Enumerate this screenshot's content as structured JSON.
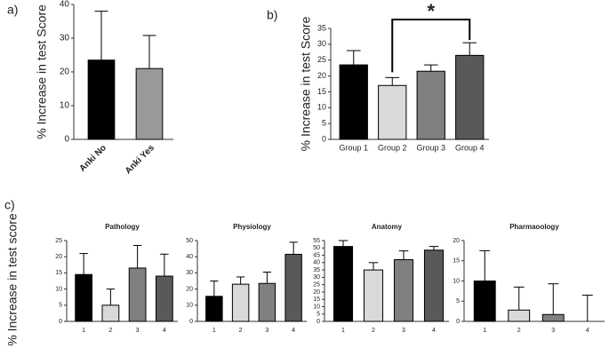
{
  "panel_labels": [
    "a)",
    "b)",
    "c)"
  ],
  "shared_ylabel": "% Increase in test score",
  "chart_data": [
    {
      "type": "bar",
      "ylabel": "% Increase in test Score",
      "categories": [
        "Anki No",
        "Anki Yes"
      ],
      "values": [
        23.5,
        21
      ],
      "errors": [
        14.5,
        9.8
      ],
      "colors": [
        "#000000",
        "#999999"
      ],
      "ylim": [
        0,
        40
      ],
      "yticks": [
        0,
        10,
        20,
        30,
        40
      ]
    },
    {
      "type": "bar",
      "ylabel": "% Increase in test Score",
      "annotation": "*",
      "categories": [
        "Group 1",
        "Group 2",
        "Group 3",
        "Group 4"
      ],
      "values": [
        23.5,
        17,
        21.5,
        26.5
      ],
      "errors": [
        4.5,
        2.5,
        2,
        4
      ],
      "colors": [
        "#000000",
        "#d9d9d9",
        "#808080",
        "#595959"
      ],
      "ylim": [
        0,
        35
      ],
      "yticks": [
        0,
        5,
        10,
        15,
        20,
        25,
        30,
        35
      ]
    },
    {
      "type": "bar",
      "title": "Pathology",
      "categories": [
        "1",
        "2",
        "3",
        "4"
      ],
      "values": [
        14.5,
        5,
        16.5,
        14
      ],
      "errors": [
        6.5,
        5,
        7,
        6.8
      ],
      "colors": [
        "#000000",
        "#d9d9d9",
        "#808080",
        "#595959"
      ],
      "ylim": [
        0,
        25
      ],
      "yticks": [
        0,
        5,
        10,
        15,
        20,
        25
      ]
    },
    {
      "type": "bar",
      "title": "Physiology",
      "categories": [
        "1",
        "2",
        "3",
        "4"
      ],
      "values": [
        15.5,
        23,
        23.5,
        41.5
      ],
      "errors": [
        9.5,
        4.5,
        7,
        7.5
      ],
      "colors": [
        "#000000",
        "#d9d9d9",
        "#808080",
        "#595959"
      ],
      "ylim": [
        0,
        50
      ],
      "yticks": [
        0,
        10,
        20,
        30,
        40,
        50
      ]
    },
    {
      "type": "bar",
      "title": "Anatomy",
      "categories": [
        "1",
        "2",
        "3",
        "4"
      ],
      "values": [
        51,
        35,
        42,
        48.5
      ],
      "errors": [
        4,
        5,
        6,
        2.5
      ],
      "colors": [
        "#000000",
        "#d9d9d9",
        "#808080",
        "#595959"
      ],
      "ylim": [
        0,
        55
      ],
      "yticks": [
        0,
        5,
        10,
        15,
        20,
        25,
        30,
        35,
        40,
        45,
        50,
        55
      ]
    },
    {
      "type": "bar",
      "title": "Pharmaoology",
      "categories": [
        "1",
        "2",
        "3",
        "4"
      ],
      "values": [
        10,
        2.8,
        1.7,
        0
      ],
      "errors": [
        7.5,
        5.7,
        7.6,
        6.5
      ],
      "colors": [
        "#000000",
        "#d9d9d9",
        "#808080",
        "#595959"
      ],
      "ylim": [
        0,
        20
      ],
      "yticks": [
        0,
        5,
        10,
        15,
        20
      ]
    }
  ]
}
